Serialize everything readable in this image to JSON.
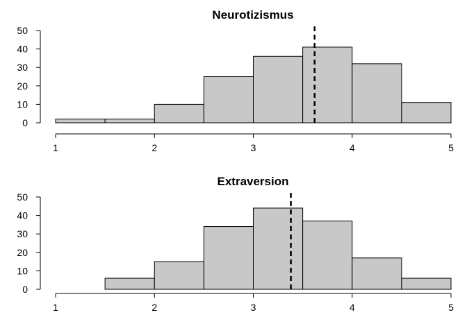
{
  "chart_data": [
    {
      "type": "bar",
      "title": "Neurotizismus",
      "xlabel": "",
      "ylabel": "",
      "bin_edges": [
        1,
        1.5,
        2,
        2.5,
        3,
        3.5,
        4,
        4.5,
        5
      ],
      "values": [
        2,
        2,
        10,
        25,
        36,
        41,
        32,
        11
      ],
      "mean": 3.62,
      "xlim": [
        1,
        5
      ],
      "ylim": [
        0,
        50
      ],
      "xticks": [
        "1",
        "2",
        "3",
        "4",
        "5"
      ],
      "yticks": [
        "0",
        "10",
        "20",
        "30",
        "40",
        "50"
      ],
      "bar_color": "#c8c8c8",
      "grid": false
    },
    {
      "type": "bar",
      "title": "Extraversion",
      "xlabel": "",
      "ylabel": "",
      "bin_edges": [
        1,
        1.5,
        2,
        2.5,
        3,
        3.5,
        4,
        4.5,
        5
      ],
      "values": [
        0,
        6,
        15,
        34,
        44,
        37,
        17,
        6
      ],
      "mean": 3.38,
      "xlim": [
        1,
        5
      ],
      "ylim": [
        0,
        50
      ],
      "xticks": [
        "1",
        "2",
        "3",
        "4",
        "5"
      ],
      "yticks": [
        "0",
        "10",
        "20",
        "30",
        "40",
        "50"
      ],
      "bar_color": "#c8c8c8",
      "grid": false
    }
  ]
}
